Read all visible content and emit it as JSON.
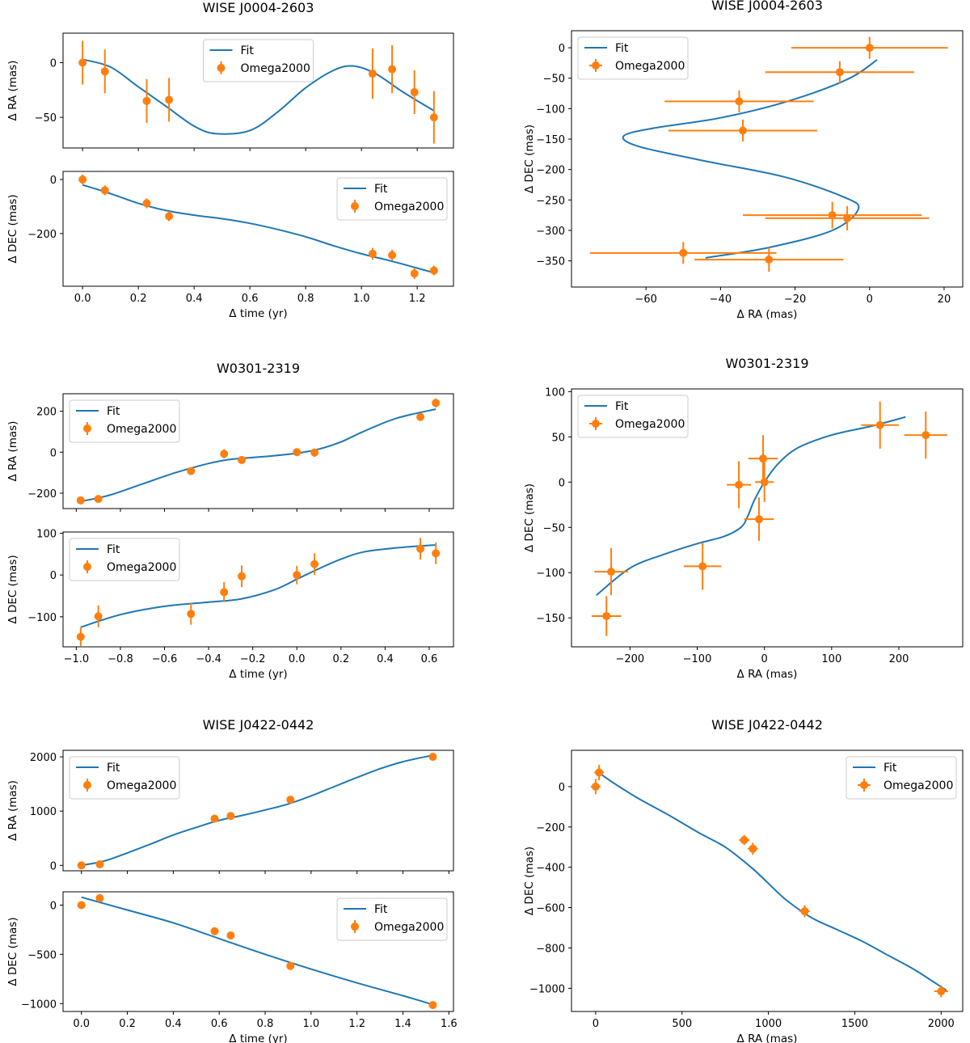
{
  "figure": {
    "legend": {
      "fit_label": "Fit",
      "data_label": "Omega2000"
    },
    "colors": {
      "fit": "#1f77b4",
      "data": "#ff7f0e"
    }
  },
  "chart_data": [
    {
      "id": "j0004-ra-time",
      "type": "line+errorbar",
      "title": "WISE J0004-2603",
      "xlabel": "",
      "ylabel": "Δ RA (mas)",
      "xlim": [
        -0.07,
        1.33
      ],
      "ylim": [
        -78,
        27
      ],
      "xticks": [],
      "yticks": [
        0,
        -50
      ],
      "legend_loc": "upper center",
      "points": {
        "x": [
          0.0,
          0.08,
          0.23,
          0.31,
          1.04,
          1.11,
          1.19,
          1.26
        ],
        "y": [
          0,
          -8,
          -35,
          -34,
          -10,
          -6,
          -27,
          -50
        ],
        "yerr": [
          20,
          20,
          20,
          20,
          23,
          22,
          20,
          24
        ]
      },
      "fit": {
        "x": [
          0.0,
          0.1,
          0.2,
          0.3,
          0.4,
          0.48,
          0.6,
          0.7,
          0.8,
          0.9,
          0.97,
          1.05,
          1.15,
          1.26
        ],
        "y": [
          3,
          -4,
          -22,
          -40,
          -58,
          -65,
          -62,
          -45,
          -23,
          -7,
          -3,
          -10,
          -27,
          -44
        ]
      }
    },
    {
      "id": "j0004-dec-time",
      "type": "line+errorbar",
      "title": "",
      "xlabel": "Δ time (yr)",
      "ylabel": "Δ DEC (mas)",
      "xlim": [
        -0.07,
        1.33
      ],
      "ylim": [
        -395,
        30
      ],
      "xticks": [
        0.0,
        0.2,
        0.4,
        0.6,
        0.8,
        1.0,
        1.2
      ],
      "yticks": [
        0,
        -200
      ],
      "legend_loc": "upper right",
      "points": {
        "x": [
          0.0,
          0.08,
          0.23,
          0.31,
          1.04,
          1.11,
          1.19,
          1.26
        ],
        "y": [
          0,
          -40,
          -88,
          -136,
          -275,
          -280,
          -348,
          -337
        ],
        "yerr": [
          18,
          18,
          18,
          18,
          22,
          20,
          20,
          18
        ]
      },
      "fit": {
        "x": [
          0.0,
          0.1,
          0.2,
          0.3,
          0.4,
          0.5,
          0.6,
          0.7,
          0.8,
          0.9,
          1.0,
          1.1,
          1.2,
          1.26
        ],
        "y": [
          -20,
          -52,
          -88,
          -115,
          -132,
          -145,
          -162,
          -185,
          -212,
          -245,
          -275,
          -300,
          -328,
          -345
        ]
      }
    },
    {
      "id": "j0004-dec-ra",
      "type": "line+errorbar",
      "title": "WISE J0004-2603",
      "xlabel": "Δ RA (mas)",
      "ylabel": "Δ DEC (mas)",
      "xlim": [
        -80,
        25
      ],
      "ylim": [
        -393,
        28
      ],
      "xticks": [
        -60,
        -40,
        -20,
        0,
        20
      ],
      "yticks": [
        0,
        -50,
        -100,
        -150,
        -200,
        -250,
        -300,
        -350
      ],
      "legend_loc": "upper left",
      "points": {
        "x": [
          0,
          -8,
          -35,
          -34,
          -10,
          -6,
          -27,
          -50
        ],
        "y": [
          0,
          -40,
          -88,
          -136,
          -275,
          -280,
          -348,
          -337
        ],
        "xerr": [
          21,
          20,
          20,
          20,
          24,
          22,
          20,
          25
        ],
        "yerr": [
          18,
          18,
          18,
          18,
          22,
          20,
          20,
          18
        ]
      },
      "fit": {
        "x": [
          2,
          -6,
          -22,
          -40,
          -58,
          -66,
          -62,
          -45,
          -23,
          -7,
          -3,
          -10,
          -27,
          -44
        ],
        "y": [
          -20,
          -52,
          -88,
          -115,
          -132,
          -145,
          -162,
          -185,
          -212,
          -245,
          -265,
          -300,
          -328,
          -345
        ]
      }
    },
    {
      "id": "w0301-ra-time",
      "type": "line+errorbar",
      "title": "W0301-2319",
      "xlabel": "",
      "ylabel": "Δ RA (mas)",
      "xlim": [
        -1.06,
        0.71
      ],
      "ylim": [
        -275,
        285
      ],
      "xticks": [],
      "yticks": [
        200,
        0,
        -200
      ],
      "legend_loc": "upper left",
      "points": {
        "x": [
          -0.98,
          -0.9,
          -0.48,
          -0.33,
          -0.25,
          0.0,
          0.08,
          0.56,
          0.63
        ],
        "y": [
          -235,
          -228,
          -92,
          -8,
          -38,
          0,
          -2,
          172,
          240
        ],
        "yerr": [
          14,
          18,
          18,
          22,
          16,
          12,
          20,
          18,
          22
        ]
      },
      "fit": {
        "x": [
          -0.98,
          -0.85,
          -0.7,
          -0.55,
          -0.4,
          -0.3,
          -0.15,
          0.0,
          0.1,
          0.2,
          0.3,
          0.45,
          0.63
        ],
        "y": [
          -240,
          -210,
          -155,
          -100,
          -55,
          -35,
          -22,
          -5,
          15,
          50,
          100,
          165,
          210
        ]
      }
    },
    {
      "id": "w0301-dec-time",
      "type": "line+errorbar",
      "title": "",
      "xlabel": "Δ time (yr)",
      "ylabel": "Δ DEC (mas)",
      "xlim": [
        -1.06,
        0.71
      ],
      "ylim": [
        -172,
        103
      ],
      "xticks": [
        -1.0,
        -0.8,
        -0.6,
        -0.4,
        -0.2,
        0.0,
        0.2,
        0.4,
        0.6
      ],
      "yticks": [
        100,
        0,
        -100
      ],
      "legend_loc": "upper left",
      "points": {
        "x": [
          -0.98,
          -0.9,
          -0.48,
          -0.33,
          -0.25,
          0.0,
          0.08,
          0.56,
          0.63
        ],
        "y": [
          -148,
          -99,
          -93,
          -41,
          -3,
          0,
          26,
          63,
          52
        ],
        "yerr": [
          22,
          26,
          26,
          24,
          26,
          22,
          26,
          26,
          26
        ]
      },
      "fit": {
        "x": [
          -0.98,
          -0.8,
          -0.6,
          -0.4,
          -0.25,
          -0.1,
          0.0,
          0.1,
          0.2,
          0.3,
          0.45,
          0.63
        ],
        "y": [
          -125,
          -95,
          -75,
          -65,
          -57,
          -35,
          -10,
          15,
          38,
          55,
          65,
          72
        ]
      }
    },
    {
      "id": "w0301-dec-ra",
      "type": "line+errorbar",
      "title": "W0301-2319",
      "xlabel": "Δ RA (mas)",
      "ylabel": "Δ DEC (mas)",
      "xlim": [
        -287,
        295
      ],
      "ylim": [
        -182,
        103
      ],
      "xticks": [
        -200,
        -100,
        0,
        100,
        200
      ],
      "yticks": [
        100,
        50,
        0,
        -50,
        -100,
        -150
      ],
      "legend_loc": "upper left",
      "points": {
        "x": [
          -235,
          -228,
          -92,
          -8,
          -38,
          0,
          -2,
          172,
          240
        ],
        "y": [
          -148,
          -99,
          -93,
          -41,
          -3,
          0,
          26,
          63,
          52
        ],
        "xerr": [
          22,
          25,
          28,
          22,
          18,
          14,
          22,
          28,
          32
        ],
        "yerr": [
          22,
          26,
          26,
          24,
          26,
          22,
          26,
          26,
          26
        ]
      },
      "fit": {
        "x": [
          -250,
          -200,
          -150,
          -100,
          -60,
          -35,
          -25,
          -15,
          0,
          20,
          50,
          100,
          160,
          210
        ],
        "y": [
          -125,
          -95,
          -80,
          -68,
          -60,
          -50,
          -38,
          -20,
          0,
          20,
          38,
          52,
          62,
          72
        ]
      }
    },
    {
      "id": "j0422-ra-time",
      "type": "line+errorbar",
      "title": "WISE J0422-0442",
      "xlabel": "",
      "ylabel": "Δ RA (mas)",
      "xlim": [
        -0.08,
        1.62
      ],
      "ylim": [
        -100,
        2120
      ],
      "xticks": [],
      "yticks": [
        2000,
        1000,
        0
      ],
      "legend_loc": "upper left",
      "points": {
        "x": [
          0.0,
          0.08,
          0.58,
          0.65,
          0.91,
          1.53
        ],
        "y": [
          0,
          20,
          860,
          910,
          1210,
          2000
        ],
        "yerr": [
          25,
          25,
          25,
          25,
          25,
          25
        ]
      },
      "fit": {
        "x": [
          0.0,
          0.1,
          0.2,
          0.3,
          0.4,
          0.5,
          0.6,
          0.7,
          0.8,
          0.9,
          1.0,
          1.1,
          1.2,
          1.3,
          1.4,
          1.53
        ],
        "y": [
          0,
          80,
          230,
          390,
          560,
          700,
          830,
          920,
          1020,
          1130,
          1280,
          1450,
          1620,
          1780,
          1910,
          2030
        ]
      }
    },
    {
      "id": "j0422-dec-time",
      "type": "line+errorbar",
      "title": "",
      "xlabel": "Δ time (yr)",
      "ylabel": "Δ DEC (mas)",
      "xlim": [
        -0.08,
        1.62
      ],
      "ylim": [
        -1080,
        135
      ],
      "xticks": [
        0.0,
        0.2,
        0.4,
        0.6,
        0.8,
        1.0,
        1.2,
        1.4,
        1.6
      ],
      "yticks": [
        0,
        -500,
        -1000
      ],
      "legend_loc": "upper right",
      "points": {
        "x": [
          0.0,
          0.08,
          0.58,
          0.65,
          0.91,
          1.53
        ],
        "y": [
          0,
          70,
          -265,
          -308,
          -618,
          -1015
        ],
        "yerr": [
          20,
          20,
          20,
          20,
          20,
          20
        ]
      },
      "fit": {
        "x": [
          0.0,
          0.2,
          0.4,
          0.6,
          0.8,
          1.0,
          1.2,
          1.4,
          1.53
        ],
        "y": [
          80,
          -50,
          -180,
          -340,
          -500,
          -650,
          -790,
          -920,
          -1010
        ]
      }
    },
    {
      "id": "j0422-dec-ra",
      "type": "line+errorbar",
      "title": "WISE J0422-0442",
      "xlabel": "Δ RA (mas)",
      "ylabel": "Δ DEC (mas)",
      "xlim": [
        -140,
        2125
      ],
      "ylim": [
        -1115,
        180
      ],
      "xticks": [
        0,
        500,
        1000,
        1500,
        2000
      ],
      "yticks": [
        0,
        -200,
        -400,
        -600,
        -800,
        -1000
      ],
      "legend_loc": "upper right",
      "points": {
        "x": [
          0,
          20,
          860,
          910,
          1210,
          2000
        ],
        "y": [
          0,
          70,
          -265,
          -308,
          -618,
          -1015
        ],
        "xerr": [
          28,
          28,
          30,
          30,
          30,
          40
        ],
        "yerr": [
          38,
          38,
          25,
          30,
          30,
          30
        ]
      },
      "fit": {
        "x": [
          0,
          100,
          250,
          420,
          600,
          750,
          900,
          1000,
          1100,
          1250,
          1400,
          1550,
          1700,
          1850,
          2030
        ],
        "y": [
          80,
          20,
          -60,
          -140,
          -230,
          -300,
          -400,
          -480,
          -560,
          -650,
          -710,
          -770,
          -840,
          -910,
          -1010
        ]
      }
    }
  ]
}
